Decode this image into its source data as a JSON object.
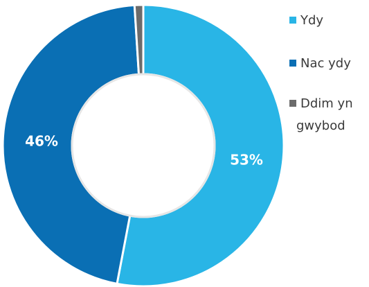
{
  "chart_data": {
    "type": "pie",
    "variant": "donut",
    "title": "",
    "categories": [
      "Ydy",
      "Nac ydy",
      "Ddim yn gwybod"
    ],
    "values": [
      53,
      46,
      1
    ],
    "labels": [
      "53%",
      "46%",
      ""
    ],
    "colors": [
      "#29B5E6",
      "#0A6FB4",
      "#6B6B6B"
    ],
    "legend_position": "right",
    "legend": [
      {
        "lines": [
          "Ydy"
        ]
      },
      {
        "lines": [
          "Nac ydy"
        ]
      },
      {
        "lines": [
          "Ddim yn",
          "gwybod"
        ]
      }
    ]
  }
}
